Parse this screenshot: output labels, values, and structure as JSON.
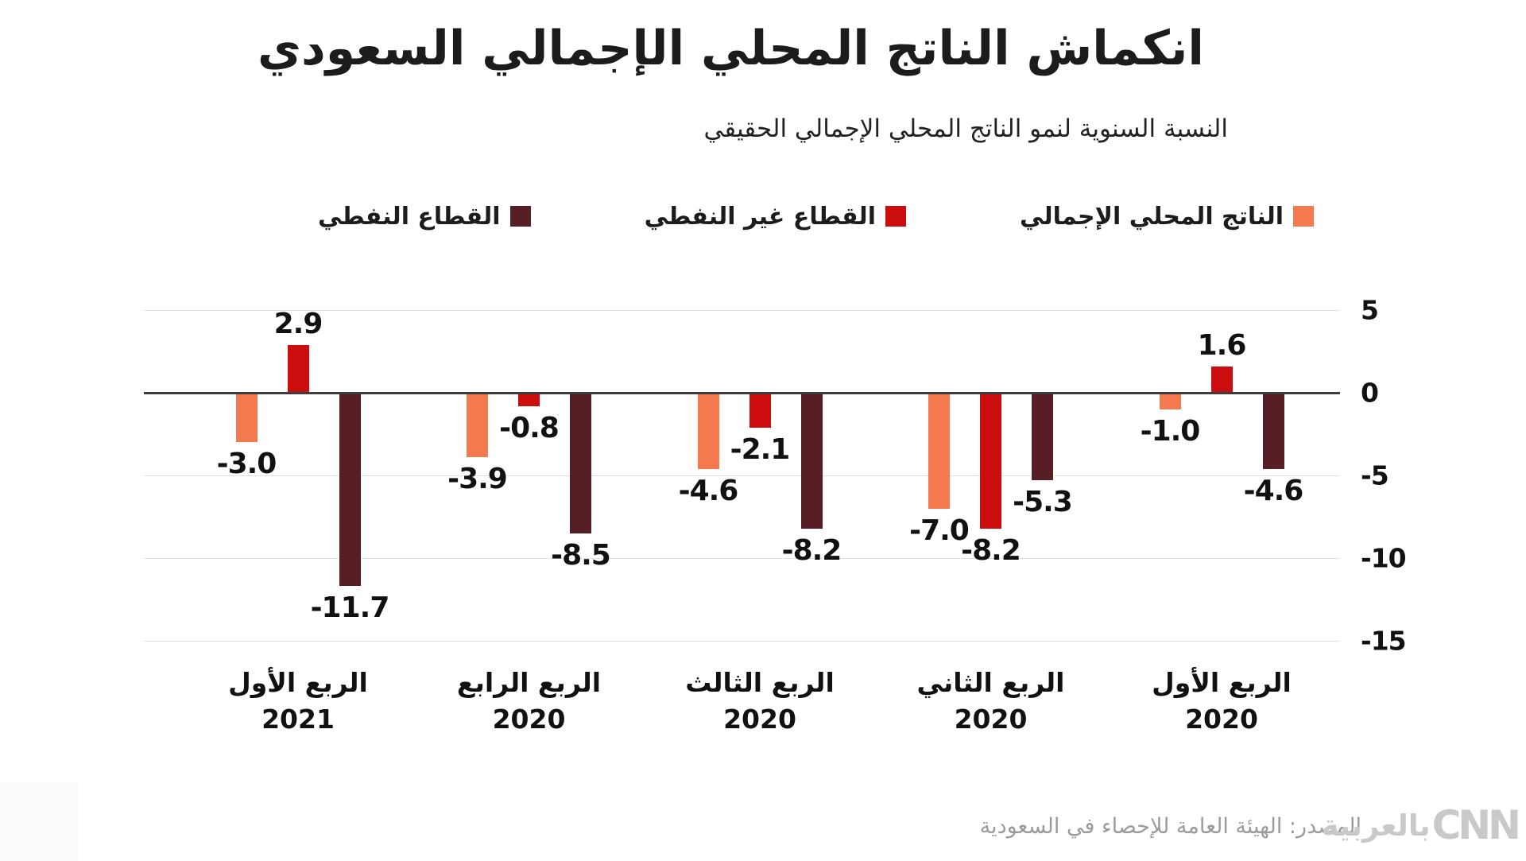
{
  "chart_data": {
    "type": "bar",
    "title": "انكماش الناتج المحلي الإجمالي السعودي",
    "subtitle": "النسبة السنوية لنمو الناتج المحلي الإجمالي الحقيقي",
    "direction": "rtl",
    "legend_position": "top",
    "grid": true,
    "y_axis": {
      "min": -15,
      "max": 5,
      "ticks": [
        5,
        0,
        -5,
        -10,
        -15
      ]
    },
    "categories": [
      {
        "id": "q1-2021",
        "quarter": "الربع الأول",
        "year": "2021"
      },
      {
        "id": "q4-2020",
        "quarter": "الربع الرابع",
        "year": "2020"
      },
      {
        "id": "q3-2020",
        "quarter": "الربع الثالث",
        "year": "2020"
      },
      {
        "id": "q2-2020",
        "quarter": "الربع الثاني",
        "year": "2020"
      },
      {
        "id": "q1-2020",
        "quarter": "الربع الأول",
        "year": "2020"
      }
    ],
    "series": [
      {
        "key": "gdp",
        "name": "الناتج المحلي الإجمالي",
        "color": "#F4794E",
        "values": [
          -3.0,
          -3.9,
          -4.6,
          -7.0,
          -1.0
        ]
      },
      {
        "key": "non_oil",
        "name": "القطاع غير النفطي",
        "color": "#CB0D0D",
        "values": [
          2.9,
          -0.8,
          -2.1,
          -8.2,
          1.6
        ]
      },
      {
        "key": "oil",
        "name": "القطاع النفطي",
        "color": "#571E25",
        "values": [
          -11.7,
          -8.5,
          -8.2,
          -5.3,
          -4.6
        ]
      }
    ],
    "value_label_format": "one_decimal"
  },
  "footer": {
    "source": "المصدر: الهيئة العامة للإحصاء في السعودية",
    "logo": {
      "arabic": "بالعربية",
      "cnn": "CNN"
    }
  },
  "colors": {
    "gdp": "#F4794E",
    "non_oil": "#CB0D0D",
    "oil": "#571E25",
    "zero_line": "#3D3D3D",
    "gridline": "#E2E2E2",
    "source_text": "#9B9B9B",
    "logo": "#C9C9C9"
  }
}
